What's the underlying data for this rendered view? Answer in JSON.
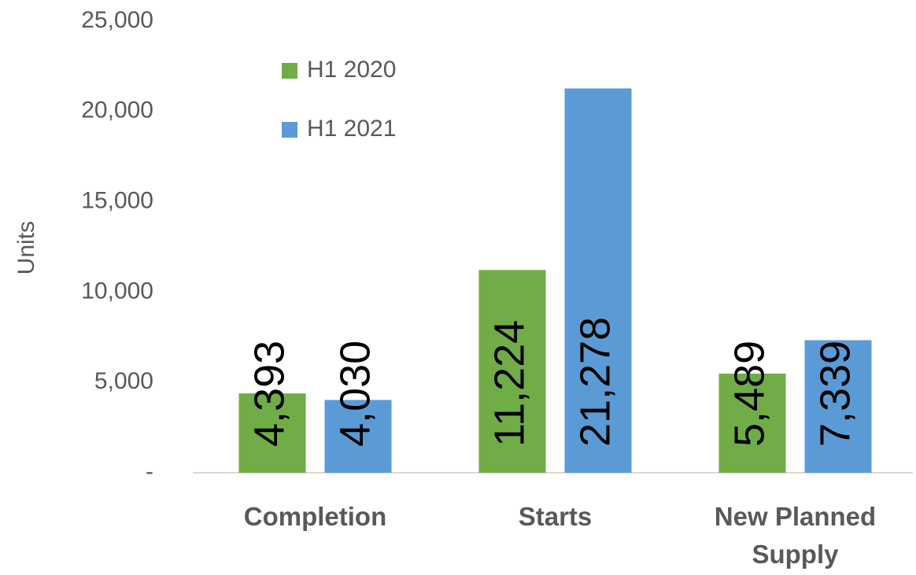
{
  "chart_data": {
    "type": "bar",
    "y_label": "Units",
    "categories": [
      "Completion",
      "Starts",
      "New Planned Supply"
    ],
    "series": [
      {
        "name": "H1 2020",
        "color": "#70ad47",
        "values": [
          4393,
          11224,
          5489
        ],
        "value_labels": [
          "4,393",
          "11,224",
          "5,489"
        ]
      },
      {
        "name": "H1 2021",
        "color": "#5b9bd5",
        "values": [
          4030,
          21278,
          7339
        ],
        "value_labels": [
          "4,030",
          "21,278",
          "7,339"
        ]
      }
    ],
    "ylim": [
      0,
      25000
    ],
    "yticks": [
      {
        "value": 0,
        "label": "-"
      },
      {
        "value": 5000,
        "label": "5,000"
      },
      {
        "value": 10000,
        "label": "10,000"
      },
      {
        "value": 15000,
        "label": "15,000"
      },
      {
        "value": 20000,
        "label": "20,000"
      },
      {
        "value": 25000,
        "label": "25,000"
      }
    ],
    "grid": false,
    "legend": "upper left"
  }
}
